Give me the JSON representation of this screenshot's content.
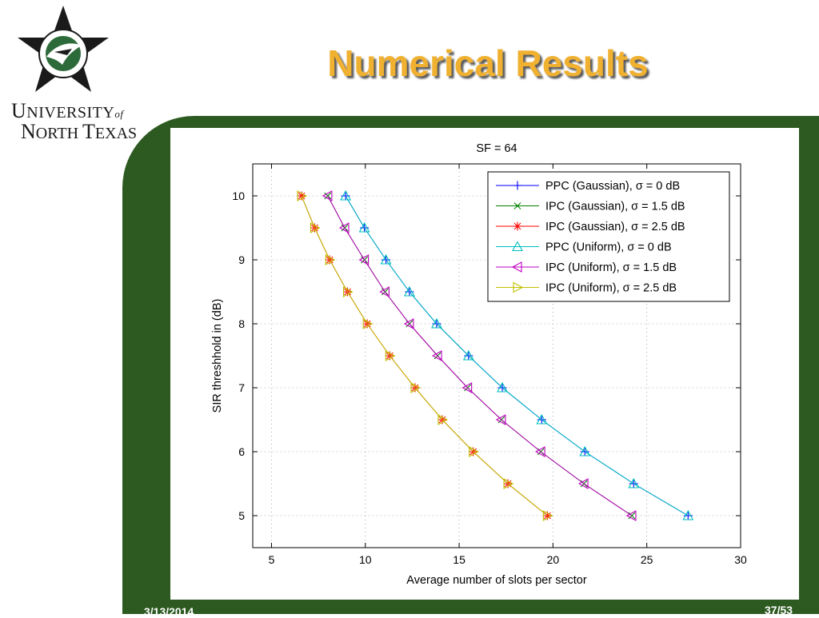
{
  "slide": {
    "title": "Numerical Results",
    "date": "3/13/2014",
    "page": "37/53"
  },
  "logo": {
    "line1_big": "U",
    "line1_rest": "NIVERSITY",
    "line1_of": "of",
    "line2_big1": "N",
    "line2_rest1": "ORTH ",
    "line2_big2": "T",
    "line2_rest2": "EXAS",
    "star_color": "#1a1a1a",
    "eagle_color": "#2d6a3a"
  },
  "colors": {
    "band": "#2d5a21",
    "title": "#f0b030"
  },
  "chart_data": {
    "type": "line",
    "title": "SF = 64",
    "xlabel": "Average number of slots per sector",
    "ylabel": "SIR threshhold in (dB)",
    "xlim": [
      4,
      30
    ],
    "ylim": [
      4.5,
      10.5
    ],
    "xticks": [
      5,
      10,
      15,
      20,
      25,
      30
    ],
    "yticks": [
      5,
      6,
      7,
      8,
      9,
      10
    ],
    "grid": true,
    "legend_position": "top-right",
    "series": [
      {
        "name": "PPC (Gaussian), σ = 0 dB",
        "color": "#0000ff",
        "marker": "plus",
        "x": [
          8.95,
          9.95,
          11.1,
          12.35,
          13.8,
          15.5,
          17.3,
          19.4,
          21.7,
          24.3,
          27.2
        ],
        "y": [
          10,
          9.5,
          9,
          8.5,
          8,
          7.5,
          7,
          6.5,
          6,
          5.5,
          5
        ]
      },
      {
        "name": "IPC (Gaussian), σ = 1.5 dB",
        "color": "#008000",
        "marker": "x",
        "x": [
          8.0,
          8.9,
          9.95,
          11.05,
          12.35,
          13.85,
          15.45,
          17.25,
          19.35,
          21.65,
          24.2
        ],
        "y": [
          10,
          9.5,
          9,
          8.5,
          8,
          7.5,
          7,
          6.5,
          6,
          5.5,
          5
        ]
      },
      {
        "name": "IPC (Gaussian), σ = 2.5 dB",
        "color": "#ff0000",
        "marker": "asterisk",
        "x": [
          6.6,
          7.3,
          8.1,
          9.05,
          10.1,
          11.3,
          12.65,
          14.1,
          15.75,
          17.6,
          19.7
        ],
        "y": [
          10,
          9.5,
          9,
          8.5,
          8,
          7.5,
          7,
          6.5,
          6,
          5.5,
          5
        ]
      },
      {
        "name": "PPC (Uniform), σ = 0 dB",
        "color": "#00bfbf",
        "marker": "triangle-up",
        "x": [
          8.95,
          9.95,
          11.1,
          12.35,
          13.8,
          15.5,
          17.3,
          19.4,
          21.7,
          24.3,
          27.2
        ],
        "y": [
          10,
          9.5,
          9,
          8.5,
          8,
          7.5,
          7,
          6.5,
          6,
          5.5,
          5
        ]
      },
      {
        "name": "IPC (Uniform), σ = 1.5 dB",
        "color": "#bf00bf",
        "marker": "triangle-left",
        "x": [
          8.0,
          8.9,
          9.95,
          11.05,
          12.35,
          13.85,
          15.45,
          17.25,
          19.35,
          21.65,
          24.2
        ],
        "y": [
          10,
          9.5,
          9,
          8.5,
          8,
          7.5,
          7,
          6.5,
          6,
          5.5,
          5
        ]
      },
      {
        "name": "IPC (Uniform), σ = 2.5 dB",
        "color": "#bfbf00",
        "marker": "triangle-right",
        "x": [
          6.6,
          7.3,
          8.1,
          9.05,
          10.1,
          11.3,
          12.65,
          14.1,
          15.75,
          17.6,
          19.7
        ],
        "y": [
          10,
          9.5,
          9,
          8.5,
          8,
          7.5,
          7,
          6.5,
          6,
          5.5,
          5
        ]
      }
    ]
  }
}
